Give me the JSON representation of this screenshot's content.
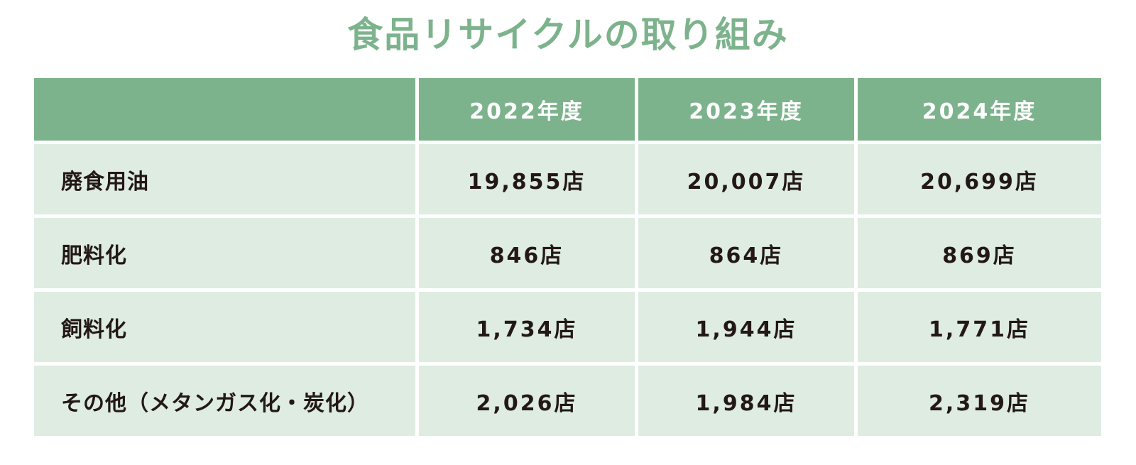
{
  "title": "食品リサイクルの取り組み",
  "table": {
    "headers": [
      "",
      "2022年度",
      "2023年度",
      "2024年度"
    ],
    "rows": [
      {
        "label": "廃食用油",
        "values": [
          "19,855店",
          "20,007店",
          "20,699店"
        ]
      },
      {
        "label": "肥料化",
        "values": [
          "846店",
          "864店",
          "869店"
        ]
      },
      {
        "label": "飼料化",
        "values": [
          "1,734店",
          "1,944店",
          "1,771店"
        ]
      },
      {
        "label": "その他（メタンガス化・炭化）",
        "values": [
          "2,026店",
          "1,984店",
          "2,319店"
        ]
      }
    ]
  },
  "colors": {
    "accent": "#7db38c",
    "row_background": "#deece2",
    "text": "#231815",
    "header_text": "#ffffff"
  }
}
